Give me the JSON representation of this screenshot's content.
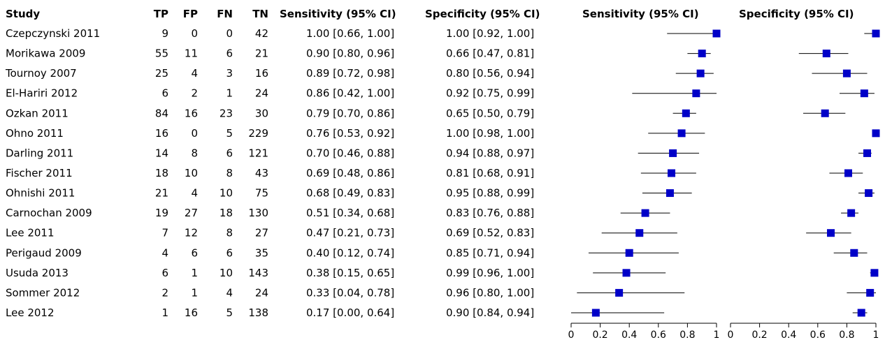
{
  "columns": {
    "study": "Study",
    "tp": "TP",
    "fp": "FP",
    "fn": "FN",
    "tn": "TN",
    "sensitivity": "Sensitivity (95% CI)",
    "specificity": "Specificity (95% CI)"
  },
  "colors": {
    "marker": "#0000c8",
    "line": "#000000"
  },
  "chart_data": {
    "type": "forest",
    "panels": [
      {
        "title": "Sensitivity (95% CI)",
        "measure": "sensitivity",
        "xlim": [
          0,
          1
        ],
        "xticks": [
          "0",
          "0.2",
          "0.4",
          "0.6",
          "0.8",
          "1"
        ]
      },
      {
        "title": "Specificity (95% CI)",
        "measure": "specificity",
        "xlim": [
          0,
          1
        ],
        "xticks": [
          "0",
          "0.2",
          "0.4",
          "0.6",
          "0.8",
          "1"
        ]
      }
    ],
    "studies": [
      {
        "study": "Czepczynski 2011",
        "tp": "9",
        "fp": "0",
        "fn": "0",
        "tn": "42",
        "sens": 1.0,
        "sens_lo": 0.66,
        "sens_hi": 1.0,
        "sens_text": "1.00 [0.66, 1.00]",
        "spec": 1.0,
        "spec_lo": 0.92,
        "spec_hi": 1.0,
        "spec_text": "1.00 [0.92, 1.00]"
      },
      {
        "study": "Morikawa 2009",
        "tp": "55",
        "fp": "11",
        "fn": "6",
        "tn": "21",
        "sens": 0.9,
        "sens_lo": 0.8,
        "sens_hi": 0.96,
        "sens_text": "0.90 [0.80, 0.96]",
        "spec": 0.66,
        "spec_lo": 0.47,
        "spec_hi": 0.81,
        "spec_text": "0.66 [0.47, 0.81]"
      },
      {
        "study": "Tournoy 2007",
        "tp": "25",
        "fp": "4",
        "fn": "3",
        "tn": "16",
        "sens": 0.89,
        "sens_lo": 0.72,
        "sens_hi": 0.98,
        "sens_text": "0.89 [0.72, 0.98]",
        "spec": 0.8,
        "spec_lo": 0.56,
        "spec_hi": 0.94,
        "spec_text": "0.80 [0.56, 0.94]"
      },
      {
        "study": "El-Hariri 2012",
        "tp": "6",
        "fp": "2",
        "fn": "1",
        "tn": "24",
        "sens": 0.86,
        "sens_lo": 0.42,
        "sens_hi": 1.0,
        "sens_text": "0.86 [0.42, 1.00]",
        "spec": 0.92,
        "spec_lo": 0.75,
        "spec_hi": 0.99,
        "spec_text": "0.92 [0.75, 0.99]"
      },
      {
        "study": "Ozkan 2011",
        "tp": "84",
        "fp": "16",
        "fn": "23",
        "tn": "30",
        "sens": 0.79,
        "sens_lo": 0.7,
        "sens_hi": 0.86,
        "sens_text": "0.79 [0.70, 0.86]",
        "spec": 0.65,
        "spec_lo": 0.5,
        "spec_hi": 0.79,
        "spec_text": "0.65 [0.50, 0.79]"
      },
      {
        "study": "Ohno 2011",
        "tp": "16",
        "fp": "0",
        "fn": "5",
        "tn": "229",
        "sens": 0.76,
        "sens_lo": 0.53,
        "sens_hi": 0.92,
        "sens_text": "0.76 [0.53, 0.92]",
        "spec": 1.0,
        "spec_lo": 0.98,
        "spec_hi": 1.0,
        "spec_text": "1.00 [0.98, 1.00]"
      },
      {
        "study": "Darling 2011",
        "tp": "14",
        "fp": "8",
        "fn": "6",
        "tn": "121",
        "sens": 0.7,
        "sens_lo": 0.46,
        "sens_hi": 0.88,
        "sens_text": "0.70 [0.46, 0.88]",
        "spec": 0.94,
        "spec_lo": 0.88,
        "spec_hi": 0.97,
        "spec_text": "0.94 [0.88, 0.97]"
      },
      {
        "study": "Fischer 2011",
        "tp": "18",
        "fp": "10",
        "fn": "8",
        "tn": "43",
        "sens": 0.69,
        "sens_lo": 0.48,
        "sens_hi": 0.86,
        "sens_text": "0.69 [0.48, 0.86]",
        "spec": 0.81,
        "spec_lo": 0.68,
        "spec_hi": 0.91,
        "spec_text": "0.81 [0.68, 0.91]"
      },
      {
        "study": "Ohnishi 2011",
        "tp": "21",
        "fp": "4",
        "fn": "10",
        "tn": "75",
        "sens": 0.68,
        "sens_lo": 0.49,
        "sens_hi": 0.83,
        "sens_text": "0.68 [0.49, 0.83]",
        "spec": 0.95,
        "spec_lo": 0.88,
        "spec_hi": 0.99,
        "spec_text": "0.95 [0.88, 0.99]"
      },
      {
        "study": "Carnochan 2009",
        "tp": "19",
        "fp": "27",
        "fn": "18",
        "tn": "130",
        "sens": 0.51,
        "sens_lo": 0.34,
        "sens_hi": 0.68,
        "sens_text": "0.51 [0.34, 0.68]",
        "spec": 0.83,
        "spec_lo": 0.76,
        "spec_hi": 0.88,
        "spec_text": "0.83 [0.76, 0.88]"
      },
      {
        "study": "Lee 2011",
        "tp": "7",
        "fp": "12",
        "fn": "8",
        "tn": "27",
        "sens": 0.47,
        "sens_lo": 0.21,
        "sens_hi": 0.73,
        "sens_text": "0.47 [0.21, 0.73]",
        "spec": 0.69,
        "spec_lo": 0.52,
        "spec_hi": 0.83,
        "spec_text": "0.69 [0.52, 0.83]"
      },
      {
        "study": "Perigaud 2009",
        "tp": "4",
        "fp": "6",
        "fn": "6",
        "tn": "35",
        "sens": 0.4,
        "sens_lo": 0.12,
        "sens_hi": 0.74,
        "sens_text": "0.40 [0.12, 0.74]",
        "spec": 0.85,
        "spec_lo": 0.71,
        "spec_hi": 0.94,
        "spec_text": "0.85 [0.71, 0.94]"
      },
      {
        "study": "Usuda 2013",
        "tp": "6",
        "fp": "1",
        "fn": "10",
        "tn": "143",
        "sens": 0.38,
        "sens_lo": 0.15,
        "sens_hi": 0.65,
        "sens_text": "0.38 [0.15, 0.65]",
        "spec": 0.99,
        "spec_lo": 0.96,
        "spec_hi": 1.0,
        "spec_text": "0.99 [0.96, 1.00]"
      },
      {
        "study": "Sommer 2012",
        "tp": "2",
        "fp": "1",
        "fn": "4",
        "tn": "24",
        "sens": 0.33,
        "sens_lo": 0.04,
        "sens_hi": 0.78,
        "sens_text": "0.33 [0.04, 0.78]",
        "spec": 0.96,
        "spec_lo": 0.8,
        "spec_hi": 1.0,
        "spec_text": "0.96 [0.80, 1.00]"
      },
      {
        "study": "Lee 2012",
        "tp": "1",
        "fp": "16",
        "fn": "5",
        "tn": "138",
        "sens": 0.17,
        "sens_lo": 0.0,
        "sens_hi": 0.64,
        "sens_text": "0.17 [0.00, 0.64]",
        "spec": 0.9,
        "spec_lo": 0.84,
        "spec_hi": 0.94,
        "spec_text": "0.90 [0.84, 0.94]"
      }
    ]
  }
}
